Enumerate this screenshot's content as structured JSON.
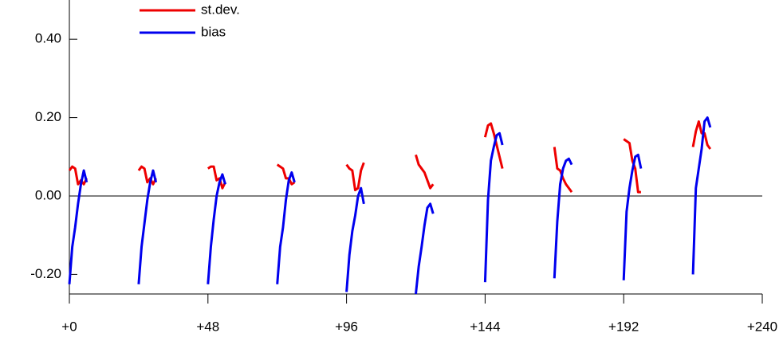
{
  "chart_data": {
    "type": "line",
    "x": [
      0,
      1,
      2,
      3,
      4,
      5,
      6,
      12,
      24,
      25,
      26,
      27,
      28,
      29,
      30,
      36,
      48,
      49,
      50,
      51,
      52,
      53,
      54,
      60,
      72,
      73,
      74,
      75,
      76,
      77,
      78,
      84,
      96,
      97,
      98,
      99,
      100,
      101,
      102,
      108,
      120,
      121,
      122,
      123,
      124,
      125,
      126,
      132,
      144,
      145,
      146,
      147,
      148,
      149,
      150,
      156,
      168,
      169,
      170,
      171,
      172,
      173,
      174,
      180,
      192,
      193,
      194,
      195,
      196,
      197,
      198,
      204,
      216,
      217,
      218,
      219,
      220,
      221,
      222
    ],
    "series": [
      {
        "name": "st.dev.",
        "color": "#ee0000",
        "values": [
          0.065,
          0.075,
          0.07,
          0.03,
          0.04,
          0.03,
          0.045,
          null,
          0.065,
          0.075,
          0.07,
          0.035,
          0.045,
          0.03,
          0.045,
          null,
          0.07,
          0.075,
          0.075,
          0.04,
          0.045,
          0.02,
          0.035,
          null,
          0.08,
          0.075,
          0.07,
          0.045,
          0.045,
          0.03,
          0.035,
          null,
          0.08,
          0.07,
          0.065,
          0.015,
          0.02,
          0.065,
          0.085,
          null,
          0.105,
          0.08,
          0.07,
          0.06,
          0.04,
          0.02,
          0.03,
          null,
          0.15,
          0.18,
          0.185,
          0.16,
          0.13,
          0.1,
          0.07,
          null,
          0.125,
          0.07,
          0.065,
          0.045,
          0.03,
          0.02,
          0.01,
          null,
          0.145,
          0.14,
          0.135,
          0.09,
          0.07,
          0.01,
          0.01,
          null,
          0.125,
          0.165,
          0.19,
          0.16,
          0.16,
          0.13,
          0.12
        ]
      },
      {
        "name": "bias",
        "color": "#0000ee",
        "values": [
          -0.225,
          -0.13,
          -0.08,
          -0.02,
          0.03,
          0.065,
          0.035,
          null,
          -0.225,
          -0.13,
          -0.07,
          -0.01,
          0.035,
          0.065,
          0.035,
          null,
          -0.225,
          -0.13,
          -0.06,
          0,
          0.035,
          0.055,
          0.03,
          null,
          -0.225,
          -0.13,
          -0.08,
          -0.01,
          0.04,
          0.06,
          0.035,
          null,
          -0.245,
          -0.15,
          -0.09,
          -0.05,
          0,
          0.02,
          -0.02,
          null,
          -0.25,
          -0.18,
          -0.13,
          -0.075,
          -0.03,
          -0.02,
          -0.045,
          null,
          -0.22,
          -0.01,
          0.09,
          0.125,
          0.155,
          0.16,
          0.13,
          null,
          -0.21,
          -0.065,
          0.03,
          0.07,
          0.09,
          0.095,
          0.08,
          null,
          -0.215,
          -0.04,
          0.02,
          0.065,
          0.1,
          0.105,
          0.07,
          null,
          -0.2,
          0.02,
          0.07,
          0.12,
          0.19,
          0.2,
          0.175
        ]
      }
    ],
    "xlim": [
      0,
      240
    ],
    "xticks": [
      {
        "value": 0,
        "label": "+0"
      },
      {
        "value": 48,
        "label": "+48"
      },
      {
        "value": 96,
        "label": "+96"
      },
      {
        "value": 144,
        "label": "+144"
      },
      {
        "value": 192,
        "label": "+192"
      },
      {
        "value": 240,
        "label": "+240"
      }
    ],
    "ylim": [
      -0.25,
      0.5
    ],
    "yticks": [
      {
        "value": -0.2,
        "label": "-0.20"
      },
      {
        "value": 0,
        "label": "0.00"
      },
      {
        "value": 0.2,
        "label": "0.20"
      },
      {
        "value": 0.4,
        "label": "0.40"
      }
    ],
    "zero_line": true,
    "legend": "top-left"
  }
}
